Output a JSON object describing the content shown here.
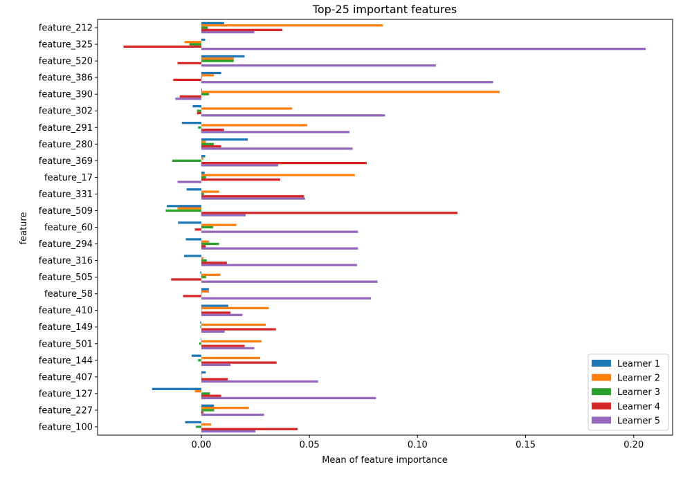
{
  "chart_data": {
    "type": "bar",
    "orientation": "horizontal",
    "title": "Top-25 important features",
    "xlabel": "Mean of feature importance",
    "ylabel": "feature",
    "xlim": [
      -0.048,
      0.218
    ],
    "xticks": [
      0.0,
      0.05,
      0.1,
      0.15,
      0.2
    ],
    "xtick_labels": [
      "0.00",
      "0.05",
      "0.10",
      "0.15",
      "0.20"
    ],
    "grid": false,
    "legend_position": "lower-right",
    "categories": [
      "feature_212",
      "feature_325",
      "feature_520",
      "feature_386",
      "feature_390",
      "feature_302",
      "feature_291",
      "feature_280",
      "feature_369",
      "feature_17",
      "feature_331",
      "feature_509",
      "feature_60",
      "feature_294",
      "feature_316",
      "feature_505",
      "feature_58",
      "feature_410",
      "feature_149",
      "feature_501",
      "feature_144",
      "feature_407",
      "feature_127",
      "feature_227",
      "feature_100"
    ],
    "series": [
      {
        "name": "Learner 1",
        "color": "#1f77b4",
        "values": [
          0.0105,
          0.0018,
          0.02,
          0.0092,
          0.0003,
          -0.004,
          -0.009,
          0.0215,
          0.0018,
          0.0015,
          -0.0068,
          -0.016,
          -0.0108,
          -0.0072,
          -0.008,
          -0.0005,
          0.0035,
          0.0125,
          -0.0005,
          -0.0002,
          -0.0045,
          0.002,
          -0.0228,
          0.0058,
          -0.0075
        ]
      },
      {
        "name": "Learner 2",
        "color": "#ff7f0e",
        "values": [
          0.084,
          -0.0078,
          0.015,
          0.0058,
          0.138,
          0.042,
          0.049,
          0.002,
          0.001,
          0.071,
          0.0082,
          -0.011,
          0.0162,
          0.0035,
          0.001,
          0.0088,
          0.0035,
          0.0312,
          0.0298,
          0.0278,
          0.0272,
          0.0002,
          -0.003,
          0.022,
          0.0045
        ]
      },
      {
        "name": "Learner 3",
        "color": "#2ca02c",
        "values": [
          0.003,
          -0.0055,
          0.015,
          0.0003,
          0.0035,
          -0.002,
          -0.0015,
          0.0058,
          -0.0135,
          0.0022,
          0.0012,
          -0.0165,
          0.0055,
          0.0082,
          0.0025,
          0.0022,
          0.0002,
          0.0002,
          -0.0005,
          -0.001,
          -0.0015,
          0.0002,
          0.004,
          0.006,
          -0.0025
        ]
      },
      {
        "name": "Learner 4",
        "color": "#d62728",
        "values": [
          0.0375,
          -0.036,
          -0.011,
          -0.013,
          -0.01,
          -0.002,
          0.0105,
          0.0092,
          0.0765,
          0.0365,
          0.0475,
          0.1185,
          -0.003,
          0.002,
          0.0118,
          -0.014,
          -0.0085,
          0.0135,
          0.0345,
          0.02,
          0.0348,
          0.0122,
          0.0092,
          0.001,
          0.0445
        ]
      },
      {
        "name": "Learner 5",
        "color": "#9467bd",
        "values": [
          0.0245,
          0.2055,
          0.1085,
          0.135,
          -0.012,
          0.085,
          0.0685,
          0.07,
          0.0355,
          -0.011,
          0.048,
          0.0205,
          0.0725,
          0.0725,
          0.072,
          0.0815,
          0.0785,
          0.019,
          0.0108,
          0.0245,
          0.0135,
          0.054,
          0.0808,
          0.029,
          0.025
        ]
      }
    ]
  }
}
